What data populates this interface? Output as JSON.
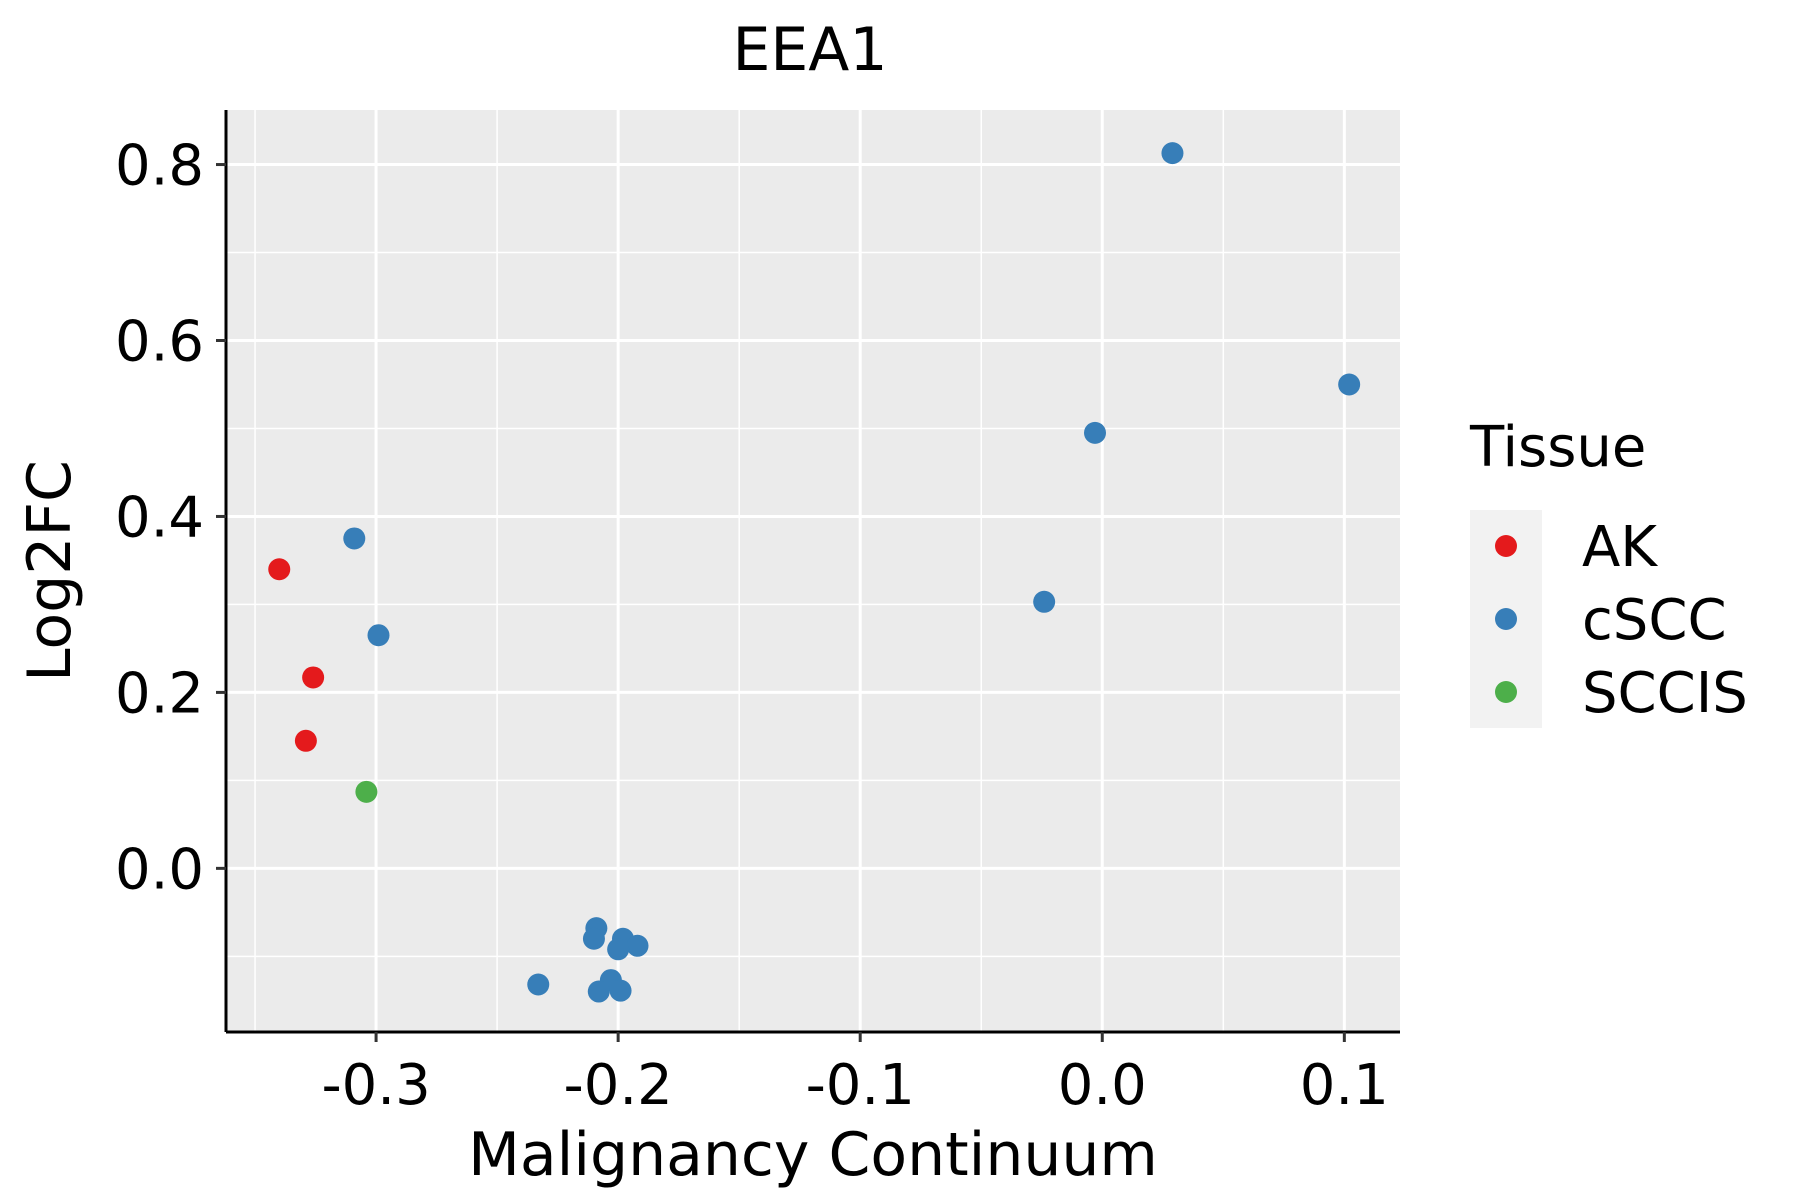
{
  "chart_data": {
    "type": "scatter",
    "title": "EEA1",
    "xlabel": "Malignancy Continuum",
    "ylabel": "Log2FC",
    "xlim": [
      -0.362,
      0.123
    ],
    "ylim": [
      -0.186,
      0.862
    ],
    "x_ticks": [
      -0.3,
      -0.2,
      -0.1,
      0.0,
      0.1
    ],
    "x_tick_labels": [
      "-0.3",
      "-0.2",
      "-0.1",
      "0.0",
      "0.1"
    ],
    "y_ticks": [
      0.0,
      0.2,
      0.4,
      0.6,
      0.8
    ],
    "y_tick_labels": [
      "0.0",
      "0.2",
      "0.4",
      "0.6",
      "0.8"
    ],
    "grid": true,
    "legend": {
      "title": "Tissue",
      "position": "right",
      "entries": [
        {
          "label": "AK",
          "color": "#E41A1C"
        },
        {
          "label": "cSCC",
          "color": "#377EB8"
        },
        {
          "label": "SCCIS",
          "color": "#4DAF4A"
        }
      ]
    },
    "series": [
      {
        "name": "AK",
        "color": "#E41A1C",
        "points": [
          {
            "x": -0.34,
            "y": 0.34
          },
          {
            "x": -0.326,
            "y": 0.217
          },
          {
            "x": -0.329,
            "y": 0.145
          }
        ]
      },
      {
        "name": "cSCC",
        "color": "#377EB8",
        "points": [
          {
            "x": -0.309,
            "y": 0.375
          },
          {
            "x": -0.299,
            "y": 0.265
          },
          {
            "x": 0.029,
            "y": 0.813
          },
          {
            "x": 0.102,
            "y": 0.55
          },
          {
            "x": -0.003,
            "y": 0.495
          },
          {
            "x": -0.024,
            "y": 0.303
          },
          {
            "x": -0.209,
            "y": -0.068
          },
          {
            "x": -0.21,
            "y": -0.08
          },
          {
            "x": -0.198,
            "y": -0.08
          },
          {
            "x": -0.192,
            "y": -0.088
          },
          {
            "x": -0.2,
            "y": -0.092
          },
          {
            "x": -0.233,
            "y": -0.132
          },
          {
            "x": -0.203,
            "y": -0.127
          },
          {
            "x": -0.208,
            "y": -0.14
          },
          {
            "x": -0.199,
            "y": -0.139
          }
        ]
      },
      {
        "name": "SCCIS",
        "color": "#4DAF4A",
        "points": [
          {
            "x": -0.304,
            "y": 0.087
          }
        ]
      }
    ]
  }
}
